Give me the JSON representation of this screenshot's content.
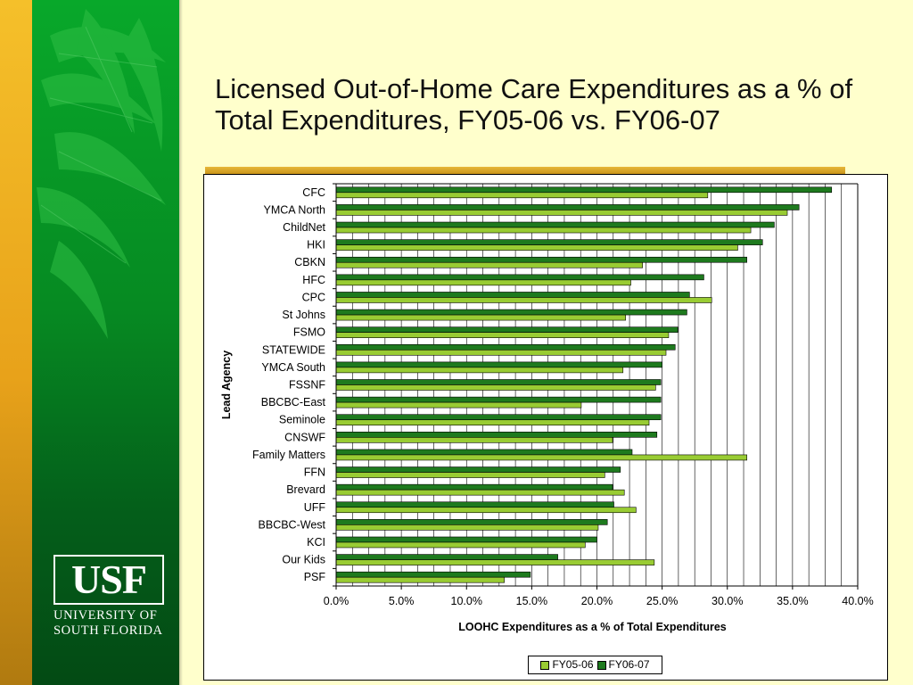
{
  "slide": {
    "title": "Licensed Out-of-Home Care Expenditures as a % of Total Expenditures, FY05-06 vs. FY06-07"
  },
  "logo": {
    "mark": "USF",
    "line1": "UNIVERSITY OF",
    "line2": "SOUTH FLORIDA"
  },
  "colors": {
    "background": "#ffffcc",
    "fy0506": "#99cc33",
    "fy0607": "#1e7a1e"
  },
  "chart_data": {
    "type": "bar",
    "orientation": "horizontal",
    "title": "",
    "xlabel": "LOOHC Expenditures as a % of Total Expenditures",
    "ylabel": "Lead Agency",
    "xlim": [
      0,
      40
    ],
    "x_ticks": [
      "0.0%",
      "5.0%",
      "10.0%",
      "15.0%",
      "20.0%",
      "25.0%",
      "30.0%",
      "35.0%",
      "40.0%"
    ],
    "grid": true,
    "legend_position": "bottom",
    "categories": [
      "CFC",
      "YMCA North",
      "ChildNet",
      "HKI",
      "CBKN",
      "HFC",
      "CPC",
      "St Johns",
      "FSMO",
      "STATEWIDE",
      "YMCA South",
      "FSSNF",
      "BBCBC-East",
      "Seminole",
      "CNSWF",
      "Family Matters",
      "FFN",
      "Brevard",
      "UFF",
      "BBCBC-West",
      "KCI",
      "Our Kids",
      "PSF"
    ],
    "series": [
      {
        "name": "FY05-06",
        "color": "#99cc33",
        "values": [
          28.5,
          34.6,
          31.8,
          30.8,
          23.5,
          22.6,
          28.8,
          22.2,
          25.5,
          25.3,
          22.0,
          24.5,
          18.8,
          24.0,
          21.2,
          31.5,
          20.6,
          22.1,
          23.0,
          20.1,
          19.1,
          24.4,
          12.9
        ]
      },
      {
        "name": "FY06-07",
        "color": "#1e7a1e",
        "values": [
          38.0,
          35.5,
          33.6,
          32.7,
          31.5,
          28.2,
          27.1,
          26.9,
          26.2,
          26.0,
          25.0,
          24.9,
          24.9,
          24.9,
          24.6,
          22.7,
          21.8,
          21.2,
          21.3,
          20.8,
          20.0,
          17.0,
          14.9
        ]
      }
    ]
  }
}
